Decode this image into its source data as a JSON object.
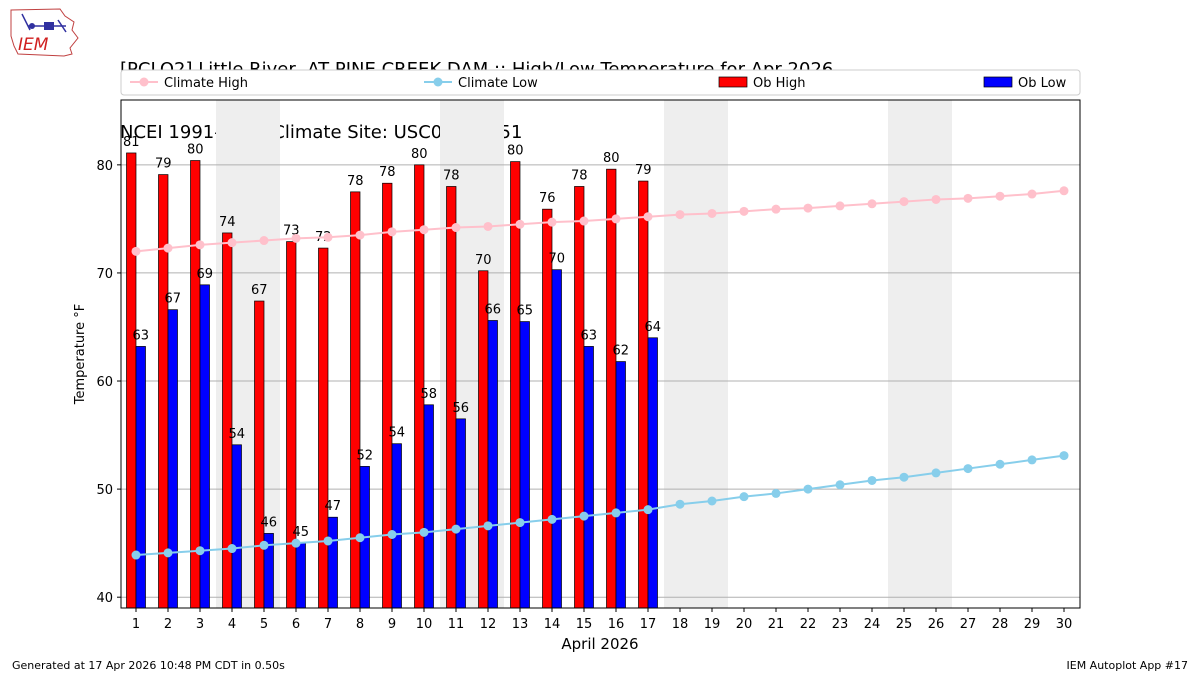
{
  "header": {
    "title_line1": "[PCLO2] Little River  AT PINE CREEK DAM :: High/Low Temperature for Apr 2026",
    "title_line2": "NCEI 1991-2020 Climate Site: USC00344451"
  },
  "logo": {
    "text": "IEM"
  },
  "footer": {
    "generated": "Generated at 17 Apr 2026 10:48 PM CDT in 0.50s",
    "app": "IEM Autoplot App #17"
  },
  "colors": {
    "ob_high": "#ff0000",
    "ob_low": "#0000ff",
    "climate_high": "#ffc0cb",
    "climate_low": "#87ceeb",
    "weekend_shade": "#eeeeee",
    "grid": "#b0b0b0"
  },
  "chart_data": {
    "type": "bar",
    "xlabel": "April 2026",
    "ylabel": "Temperature °F",
    "ylim": [
      39,
      86
    ],
    "yticks": [
      40,
      50,
      60,
      70,
      80
    ],
    "grid": "horizontal",
    "legend_position": "top, above plot",
    "categories": [
      "1",
      "2",
      "3",
      "4",
      "5",
      "6",
      "7",
      "8",
      "9",
      "10",
      "11",
      "12",
      "13",
      "14",
      "15",
      "16",
      "17",
      "18",
      "19",
      "20",
      "21",
      "22",
      "23",
      "24",
      "25",
      "26",
      "27",
      "28",
      "29",
      "30"
    ],
    "weekend_days": [
      4,
      5,
      11,
      12,
      18,
      19,
      25,
      26
    ],
    "series": [
      {
        "name": "Ob High",
        "kind": "bar",
        "values": [
          81.1,
          79.1,
          80.4,
          73.7,
          67.4,
          72.9,
          72.3,
          77.5,
          78.3,
          80.0,
          78.0,
          70.2,
          80.3,
          75.9,
          78.0,
          79.6,
          78.5,
          null,
          null,
          null,
          null,
          null,
          null,
          null,
          null,
          null,
          null,
          null,
          null,
          null
        ],
        "labels": [
          "81",
          "79",
          "80",
          "74",
          "67",
          "73",
          "72",
          "78",
          "78",
          "80",
          "78",
          "70",
          "80",
          "76",
          "78",
          "80",
          "79",
          "",
          "",
          "",
          "",
          "",
          "",
          "",
          "",
          "",
          "",
          "",
          "",
          ""
        ]
      },
      {
        "name": "Ob Low",
        "kind": "bar",
        "values": [
          63.2,
          66.6,
          68.9,
          54.1,
          45.9,
          45.0,
          47.4,
          52.1,
          54.2,
          57.8,
          56.5,
          65.6,
          65.5,
          70.3,
          63.2,
          61.8,
          64.0,
          null,
          null,
          null,
          null,
          null,
          null,
          null,
          null,
          null,
          null,
          null,
          null,
          null
        ],
        "labels": [
          "63",
          "67",
          "69",
          "54",
          "46",
          "45",
          "47",
          "52",
          "54",
          "58",
          "56",
          "66",
          "65",
          "70",
          "63",
          "62",
          "64",
          "",
          "",
          "",
          "",
          "",
          "",
          "",
          "",
          "",
          "",
          "",
          "",
          ""
        ]
      },
      {
        "name": "Climate High",
        "kind": "line",
        "values": [
          72.0,
          72.3,
          72.6,
          72.8,
          73.0,
          73.2,
          73.3,
          73.5,
          73.8,
          74.0,
          74.2,
          74.3,
          74.5,
          74.7,
          74.8,
          75.0,
          75.2,
          75.4,
          75.5,
          75.7,
          75.9,
          76.0,
          76.2,
          76.4,
          76.6,
          76.8,
          76.9,
          77.1,
          77.3,
          77.6
        ]
      },
      {
        "name": "Climate Low",
        "kind": "line",
        "values": [
          43.9,
          44.1,
          44.3,
          44.5,
          44.8,
          45.0,
          45.2,
          45.5,
          45.8,
          46.0,
          46.3,
          46.6,
          46.9,
          47.2,
          47.5,
          47.8,
          48.1,
          48.6,
          48.9,
          49.3,
          49.6,
          50.0,
          50.4,
          50.8,
          51.1,
          51.5,
          51.9,
          52.3,
          52.7,
          53.1
        ]
      }
    ]
  }
}
